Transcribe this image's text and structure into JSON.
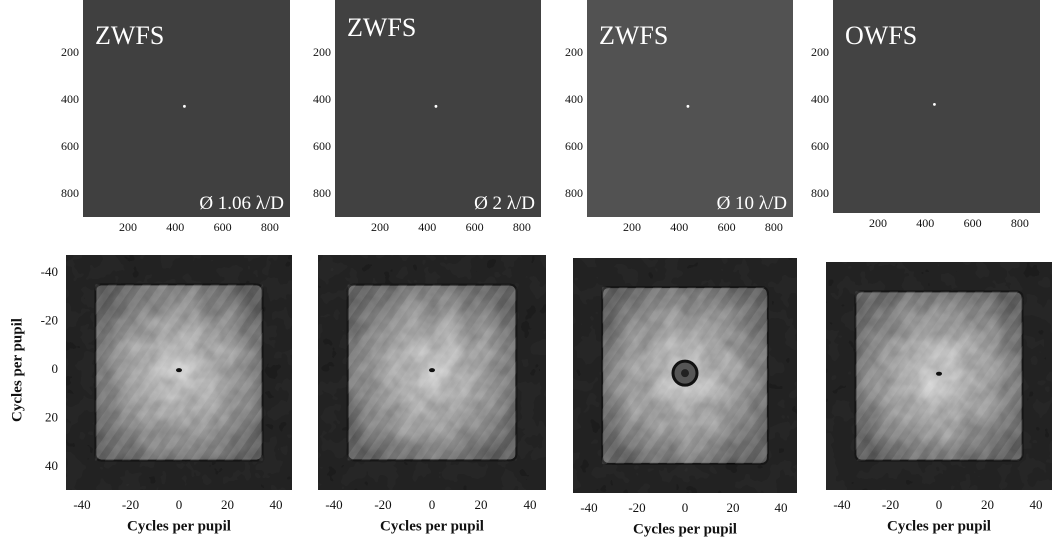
{
  "top_panels": [
    {
      "title": "ZWFS",
      "annotation": "Ø 1.06 λ/D",
      "yticks": [
        "200",
        "400",
        "600",
        "800"
      ],
      "xticks": [
        "200",
        "400",
        "600",
        "800"
      ]
    },
    {
      "title": "ZWFS",
      "annotation": "Ø 2 λ/D",
      "yticks": [
        "200",
        "400",
        "600",
        "800"
      ],
      "xticks": [
        "200",
        "400",
        "600",
        "800"
      ]
    },
    {
      "title": "ZWFS",
      "annotation": "Ø 10 λ/D",
      "yticks": [
        "200",
        "400",
        "600",
        "800"
      ],
      "xticks": [
        "200",
        "400",
        "600",
        "800"
      ]
    },
    {
      "title": "OWFS",
      "yticks": [
        "200",
        "400",
        "600",
        "800"
      ],
      "xticks": [
        "200",
        "400",
        "600",
        "800"
      ]
    }
  ],
  "bottom_row": {
    "ylabel": "Cycles per pupil",
    "yticks": [
      "-40",
      "-20",
      "0",
      "20",
      "40"
    ],
    "panels": [
      {
        "xlabel": "Cycles per pupil",
        "xticks": [
          "-40",
          "-20",
          "0",
          "20",
          "40"
        ]
      },
      {
        "xlabel": "Cycles per pupil",
        "xticks": [
          "-40",
          "-20",
          "0",
          "20",
          "40"
        ]
      },
      {
        "xlabel": "Cycles per pupil",
        "xticks": [
          "-40",
          "-20",
          "0",
          "20",
          "40"
        ]
      },
      {
        "xlabel": "Cycles per pupil",
        "xticks": [
          "-40",
          "-20",
          "0",
          "20",
          "40"
        ]
      }
    ]
  }
}
